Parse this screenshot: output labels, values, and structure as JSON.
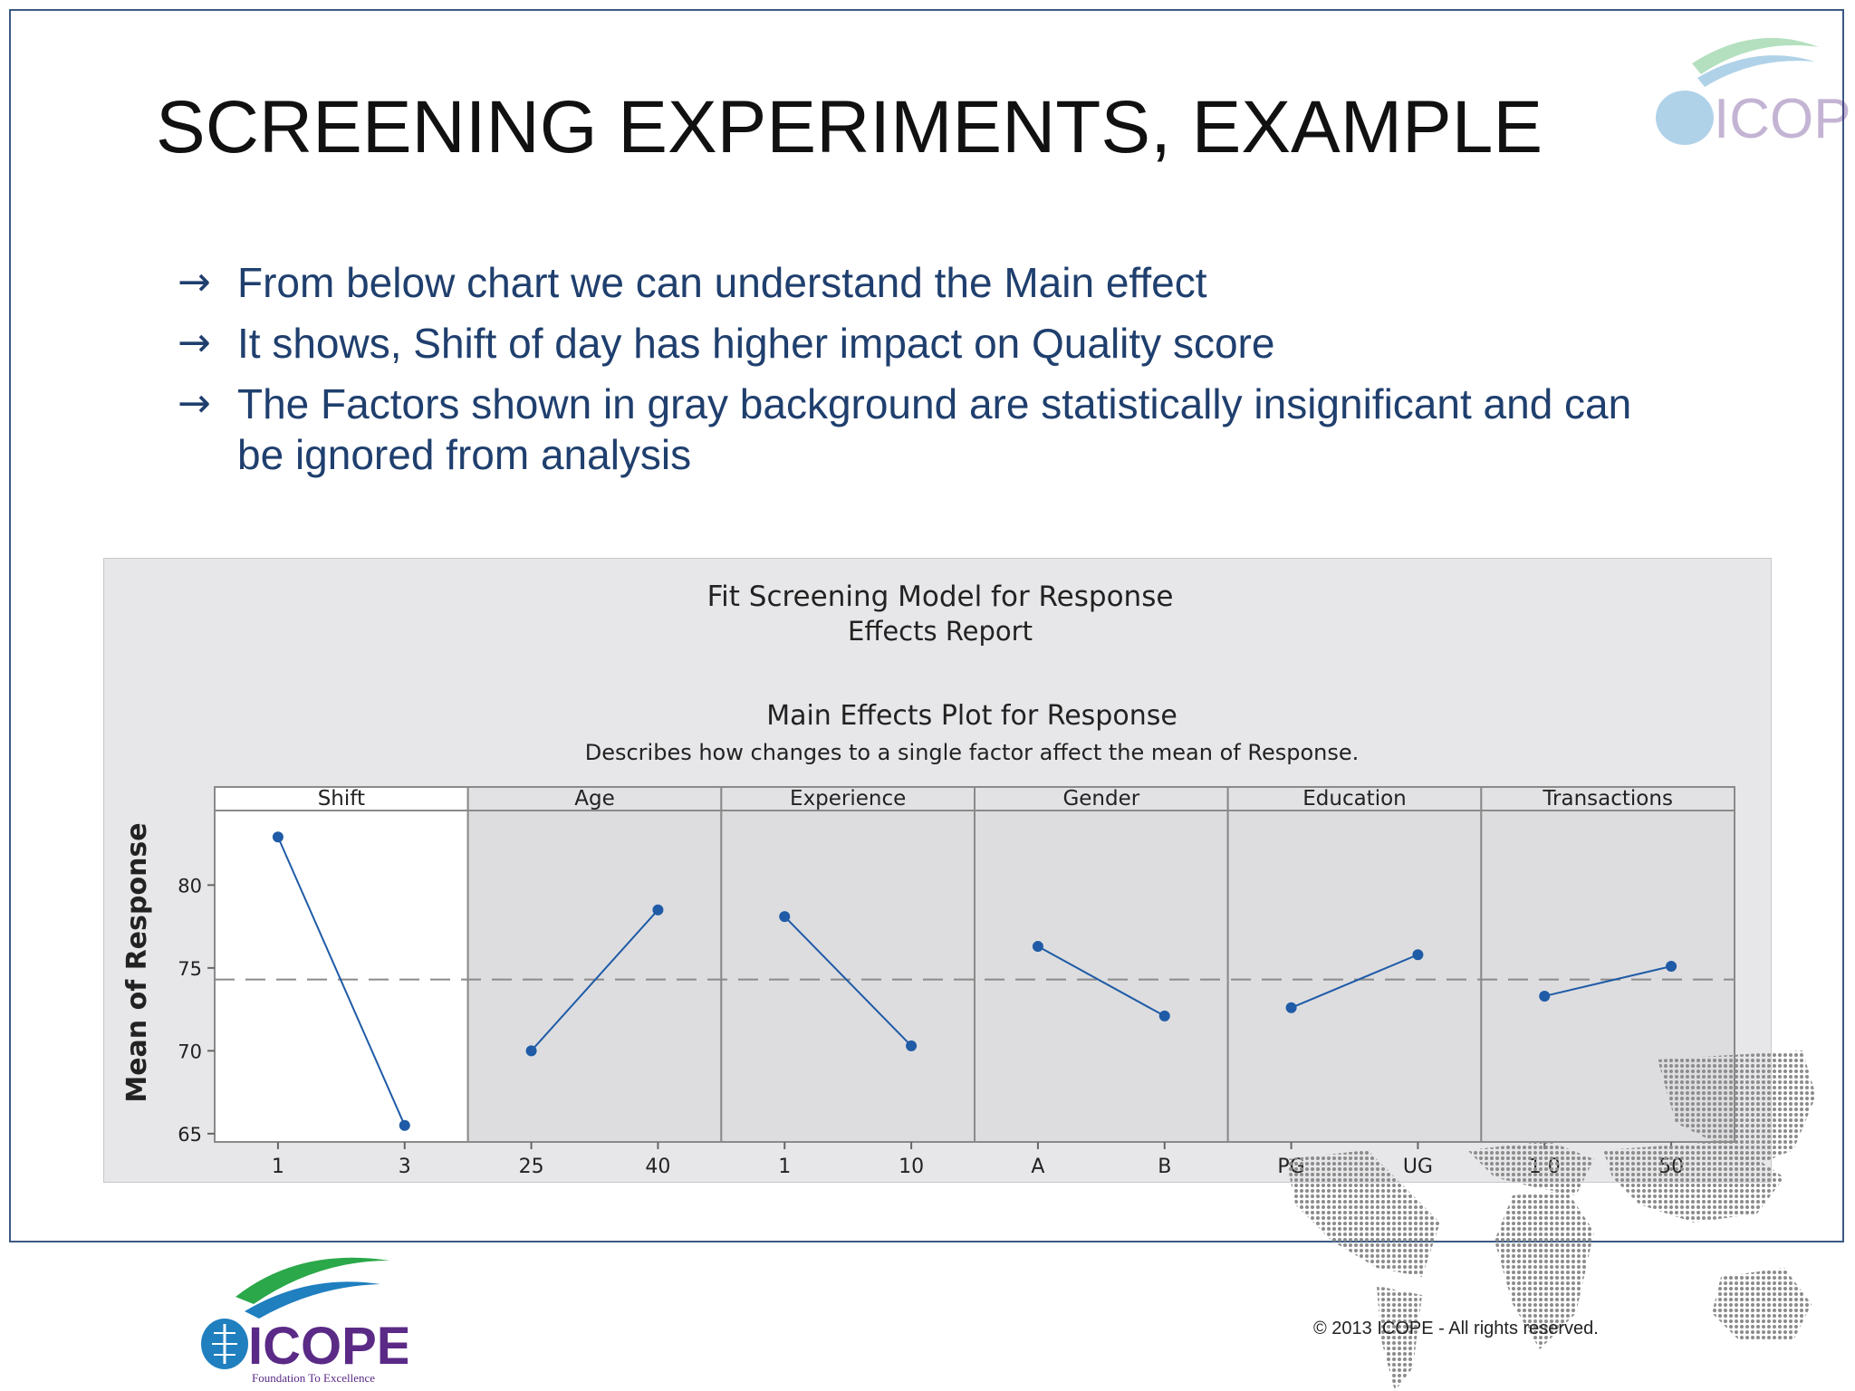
{
  "slide": {
    "title": "SCREENING EXPERIMENTS, EXAMPLE",
    "bullets": [
      "From below chart we can understand the Main effect",
      "It shows, Shift of day has higher impact on Quality score",
      "The Factors shown in gray background are statistically insignificant and can be ignored from analysis"
    ],
    "bullet_arrow": "→"
  },
  "chart_data": {
    "type": "line",
    "report_title": "Fit Screening Model for Response",
    "report_subtitle": "Effects Report",
    "title": "Main Effects Plot for Response",
    "subtitle": "Describes how changes to a single factor affect the mean of Response.",
    "ylabel": "Mean of Response",
    "ylim": [
      64.5,
      84.5
    ],
    "yticks": [
      65,
      70,
      75,
      80
    ],
    "overall_mean": 74.3,
    "grid": false,
    "series_color": "#1f5ba6",
    "panels": [
      {
        "factor": "Shift",
        "levels": [
          "1",
          "3"
        ],
        "values": [
          82.9,
          65.5
        ],
        "highlight": true
      },
      {
        "factor": "Age",
        "levels": [
          "25",
          "40"
        ],
        "values": [
          70.0,
          78.5
        ],
        "highlight": false
      },
      {
        "factor": "Experience",
        "levels": [
          "1",
          "10"
        ],
        "values": [
          78.1,
          70.3
        ],
        "highlight": false
      },
      {
        "factor": "Gender",
        "levels": [
          "A",
          "B"
        ],
        "values": [
          76.3,
          72.1
        ],
        "highlight": false
      },
      {
        "factor": "Education",
        "levels": [
          "PG",
          "UG"
        ],
        "values": [
          72.6,
          75.8
        ],
        "highlight": false
      },
      {
        "factor": "Transactions",
        "levels": [
          "1 0",
          "50"
        ],
        "values": [
          73.3,
          75.1
        ],
        "highlight": false
      }
    ]
  },
  "footer": {
    "copyright": "©  2013 ICOPE - All rights reserved.",
    "logo_text": "ICOPE",
    "logo_tagline": "Foundation To Excellence"
  },
  "colors": {
    "title": "#111111",
    "bullet_text": "#1f3f6e",
    "frame": "#3c5a82",
    "panel_bg": "#e7e7e9",
    "highlight_bg": "#ffffff",
    "logo_blue": "#1f7fbf",
    "logo_purple": "#5a2a86",
    "logo_green": "#2aa84a"
  }
}
